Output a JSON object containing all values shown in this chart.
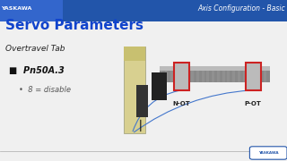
{
  "bg_color": "#f0f0f0",
  "header_bar_color": "#2255aa",
  "header_bar_height": 0.135,
  "yaskawa_text": "YASKAWA",
  "yaskawa_text_color": "#ffffff",
  "header_right_text": "Axis Configuration - Basic",
  "header_right_color": "#ffffff",
  "title_text": "Servo Parameters",
  "title_color": "#1144cc",
  "subtitle_text": "Overtravel Tab",
  "subtitle_color": "#222222",
  "bullet1_text": "Pn50A.3",
  "bullet1_color": "#111111",
  "bullet2_text": "8 = disable",
  "bullet2_color": "#555555",
  "footer_line_color": "#aaaaaa"
}
